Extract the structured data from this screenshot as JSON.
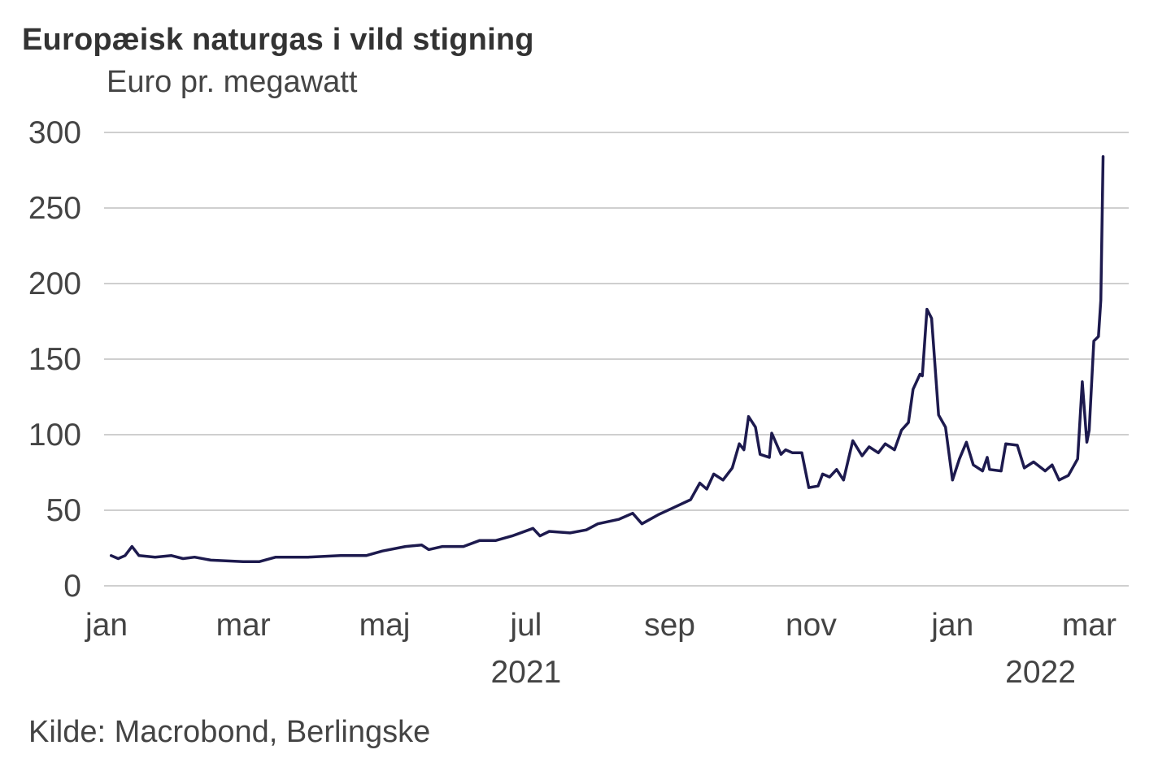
{
  "chart_data": {
    "type": "line",
    "title": "Europæisk naturgas i vild stigning",
    "subtitle": "Euro pr. megawatt",
    "source": "Kilde: Macrobond, Berlingske",
    "xlabel": "",
    "ylabel": "Euro pr. megawatt",
    "ylim": [
      0,
      300
    ],
    "yticks": [
      0,
      50,
      100,
      150,
      200,
      250,
      300
    ],
    "grid": true,
    "x_unit": "days since 1 Jan 2021",
    "xlim": [
      0,
      440
    ],
    "xticks": [
      {
        "day": 0,
        "label": "jan"
      },
      {
        "day": 59,
        "label": "mar"
      },
      {
        "day": 120,
        "label": "maj"
      },
      {
        "day": 181,
        "label": "jul"
      },
      {
        "day": 243,
        "label": "sep"
      },
      {
        "day": 304,
        "label": "nov"
      },
      {
        "day": 365,
        "label": "jan"
      },
      {
        "day": 424,
        "label": "mar"
      }
    ],
    "year_labels": [
      {
        "day": 181,
        "label": "2021"
      },
      {
        "day": 403,
        "label": "2022"
      }
    ],
    "series": [
      {
        "name": "Europæisk naturgas",
        "color": "#1d1a4e",
        "points": [
          [
            2,
            20
          ],
          [
            5,
            18
          ],
          [
            8,
            20
          ],
          [
            11,
            26
          ],
          [
            14,
            20
          ],
          [
            21,
            19
          ],
          [
            28,
            20
          ],
          [
            33,
            18
          ],
          [
            38,
            19
          ],
          [
            45,
            17
          ],
          [
            59,
            16
          ],
          [
            66,
            16
          ],
          [
            73,
            19
          ],
          [
            87,
            19
          ],
          [
            101,
            20
          ],
          [
            112,
            20
          ],
          [
            119,
            23
          ],
          [
            129,
            26
          ],
          [
            136,
            27
          ],
          [
            139,
            24
          ],
          [
            145,
            26
          ],
          [
            154,
            26
          ],
          [
            161,
            30
          ],
          [
            168,
            30
          ],
          [
            175,
            33
          ],
          [
            184,
            38
          ],
          [
            187,
            33
          ],
          [
            191,
            36
          ],
          [
            200,
            35
          ],
          [
            207,
            37
          ],
          [
            212,
            41
          ],
          [
            221,
            44
          ],
          [
            227,
            48
          ],
          [
            231,
            41
          ],
          [
            238,
            47
          ],
          [
            245,
            52
          ],
          [
            252,
            57
          ],
          [
            256,
            68
          ],
          [
            259,
            64
          ],
          [
            262,
            74
          ],
          [
            266,
            70
          ],
          [
            270,
            78
          ],
          [
            273,
            94
          ],
          [
            275,
            90
          ],
          [
            277,
            112
          ],
          [
            280,
            105
          ],
          [
            282,
            87
          ],
          [
            286,
            85
          ],
          [
            287,
            101
          ],
          [
            291,
            87
          ],
          [
            293,
            90
          ],
          [
            296,
            88
          ],
          [
            300,
            88
          ],
          [
            303,
            65
          ],
          [
            307,
            66
          ],
          [
            309,
            74
          ],
          [
            312,
            72
          ],
          [
            315,
            77
          ],
          [
            318,
            70
          ],
          [
            322,
            96
          ],
          [
            326,
            86
          ],
          [
            329,
            92
          ],
          [
            333,
            88
          ],
          [
            336,
            94
          ],
          [
            340,
            90
          ],
          [
            343,
            103
          ],
          [
            346,
            108
          ],
          [
            348,
            130
          ],
          [
            351,
            140
          ],
          [
            352,
            139
          ],
          [
            354,
            183
          ],
          [
            356,
            177
          ],
          [
            359,
            113
          ],
          [
            362,
            105
          ],
          [
            365,
            70
          ],
          [
            368,
            84
          ],
          [
            371,
            95
          ],
          [
            374,
            80
          ],
          [
            378,
            76
          ],
          [
            380,
            85
          ],
          [
            381,
            77
          ],
          [
            386,
            76
          ],
          [
            388,
            94
          ],
          [
            393,
            93
          ],
          [
            396,
            78
          ],
          [
            400,
            82
          ],
          [
            405,
            76
          ],
          [
            408,
            80
          ],
          [
            411,
            70
          ],
          [
            415,
            73
          ],
          [
            419,
            84
          ],
          [
            421,
            135
          ],
          [
            423,
            95
          ],
          [
            424,
            103
          ],
          [
            426,
            162
          ],
          [
            428,
            165
          ],
          [
            429,
            189
          ],
          [
            430,
            284
          ]
        ]
      }
    ]
  }
}
